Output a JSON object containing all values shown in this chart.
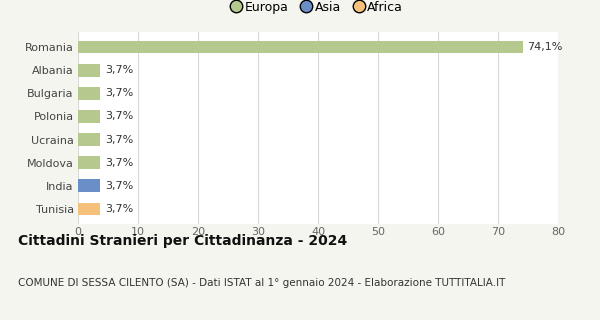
{
  "categories": [
    "Tunisia",
    "India",
    "Moldova",
    "Ucraina",
    "Polonia",
    "Bulgaria",
    "Albania",
    "Romania"
  ],
  "values": [
    3.7,
    3.7,
    3.7,
    3.7,
    3.7,
    3.7,
    3.7,
    74.1
  ],
  "bar_colors": [
    "#f5c07a",
    "#6a8fc8",
    "#b5c98e",
    "#b5c98e",
    "#b5c98e",
    "#b5c98e",
    "#b5c98e",
    "#b5c98e"
  ],
  "bar_labels": [
    "3,7%",
    "3,7%",
    "3,7%",
    "3,7%",
    "3,7%",
    "3,7%",
    "3,7%",
    "74,1%"
  ],
  "xlim": [
    0,
    80
  ],
  "xticks": [
    0,
    10,
    20,
    30,
    40,
    50,
    60,
    70,
    80
  ],
  "title": "Cittadini Stranieri per Cittadinanza - 2024",
  "subtitle": "COMUNE DI SESSA CILENTO (SA) - Dati ISTAT al 1° gennaio 2024 - Elaborazione TUTTITALIA.IT",
  "title_fontsize": 10,
  "subtitle_fontsize": 7.5,
  "legend_labels": [
    "Europa",
    "Asia",
    "Africa"
  ],
  "legend_colors": [
    "#b5c98e",
    "#6a8fc8",
    "#f5c07a"
  ],
  "background_color": "#f5f5f0",
  "plot_bg_color": "#ffffff",
  "grid_color": "#d8d8d8",
  "label_fontsize": 8,
  "tick_fontsize": 8,
  "ytick_fontsize": 8
}
